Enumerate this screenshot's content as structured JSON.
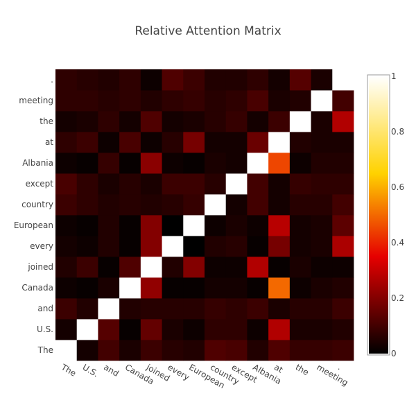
{
  "chart_data": {
    "type": "heatmap",
    "title": "Relative Attention Matrix",
    "x_labels": [
      "The",
      "U.S.",
      "and",
      "Canada",
      "joined",
      "every",
      "European",
      "country",
      "except",
      "Albania",
      "at",
      "the",
      "meeting",
      "."
    ],
    "y_labels": [
      "The",
      "U.S.",
      "and",
      "Canada",
      "joined",
      "every",
      "European",
      "country",
      "except",
      "Albania",
      "at",
      "the",
      "meeting",
      "."
    ],
    "zlim": [
      0,
      1
    ],
    "colorscale": [
      "#000000",
      "#e60000",
      "#ffd200",
      "#ffffff"
    ],
    "colorbar_ticks": [
      "0",
      "0.2",
      "0.4",
      "0.6",
      "0.8",
      "1"
    ],
    "values": [
      [
        1.0,
        0.03,
        0.1,
        0.04,
        0.09,
        0.06,
        0.05,
        0.12,
        0.11,
        0.05,
        0.12,
        0.08,
        0.08,
        0.09
      ],
      [
        0.03,
        1.0,
        0.13,
        0.01,
        0.15,
        0.04,
        0.02,
        0.07,
        0.07,
        0.02,
        0.27,
        0.04,
        0.04,
        0.05
      ],
      [
        0.09,
        0.05,
        1.0,
        0.05,
        0.06,
        0.06,
        0.06,
        0.08,
        0.07,
        0.09,
        0.04,
        0.06,
        0.06,
        0.09
      ],
      [
        0.02,
        0.01,
        0.04,
        1.0,
        0.22,
        0.01,
        0.01,
        0.03,
        0.03,
        0.01,
        0.5,
        0.02,
        0.04,
        0.05
      ],
      [
        0.05,
        0.09,
        0.01,
        0.12,
        1.0,
        0.05,
        0.2,
        0.02,
        0.02,
        0.27,
        0.01,
        0.04,
        0.02,
        0.02
      ],
      [
        0.03,
        0.02,
        0.05,
        0.01,
        0.2,
        1.0,
        0.0,
        0.05,
        0.06,
        0.01,
        0.18,
        0.03,
        0.04,
        0.26
      ],
      [
        0.02,
        0.01,
        0.05,
        0.01,
        0.2,
        0.0,
        1.0,
        0.02,
        0.04,
        0.02,
        0.28,
        0.03,
        0.04,
        0.14
      ],
      [
        0.09,
        0.07,
        0.05,
        0.06,
        0.05,
        0.06,
        0.08,
        1.0,
        0.03,
        0.1,
        0.03,
        0.06,
        0.06,
        0.1
      ],
      [
        0.11,
        0.07,
        0.04,
        0.06,
        0.04,
        0.09,
        0.09,
        0.06,
        1.0,
        0.1,
        0.03,
        0.08,
        0.07,
        0.07
      ],
      [
        0.02,
        0.01,
        0.08,
        0.01,
        0.21,
        0.02,
        0.01,
        0.04,
        0.03,
        1.0,
        0.45,
        0.02,
        0.05,
        0.05
      ],
      [
        0.07,
        0.09,
        0.02,
        0.11,
        0.02,
        0.06,
        0.18,
        0.03,
        0.03,
        0.16,
        1.0,
        0.05,
        0.04,
        0.04
      ],
      [
        0.03,
        0.04,
        0.07,
        0.03,
        0.12,
        0.03,
        0.04,
        0.06,
        0.08,
        0.03,
        0.09,
        1.0,
        0.04,
        0.27
      ],
      [
        0.07,
        0.07,
        0.06,
        0.07,
        0.05,
        0.07,
        0.08,
        0.06,
        0.07,
        0.11,
        0.04,
        0.05,
        1.0,
        0.1
      ],
      [
        0.07,
        0.06,
        0.05,
        0.07,
        0.02,
        0.12,
        0.09,
        0.05,
        0.05,
        0.07,
        0.03,
        0.13,
        0.04,
        1.0
      ]
    ]
  }
}
